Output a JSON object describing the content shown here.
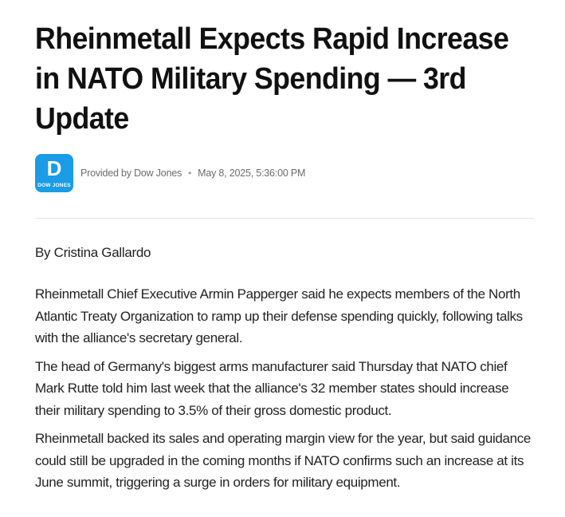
{
  "article": {
    "headline": "Rheinmetall Expects Rapid Increase in NATO Military Spending — 3rd Update",
    "provider": {
      "logo_letter": "D",
      "logo_text": "DOW JONES",
      "provided_by": "Provided by Dow Jones",
      "timestamp": "May 8, 2025, 5:36:00 PM",
      "separator": "•",
      "brand_color": "#1a9ce6"
    },
    "author": "By Cristina Gallardo",
    "paragraphs": [
      "Rheinmetall Chief Executive Armin Papperger said he expects members of the North Atlantic Treaty Organization to ramp up their defense spending quickly, following talks with the alliance's secretary general.",
      "The head of Germany's biggest arms manufacturer said Thursday that NATO chief Mark Rutte told him last week that the alliance's 32 member states should increase their military spending to 3.5% of their gross domestic product.",
      "Rheinmetall backed its sales and operating margin view for the year, but said guidance could still be upgraded in the coming months if NATO confirms such an increase at its June summit, triggering a surge in orders for military equipment."
    ]
  }
}
